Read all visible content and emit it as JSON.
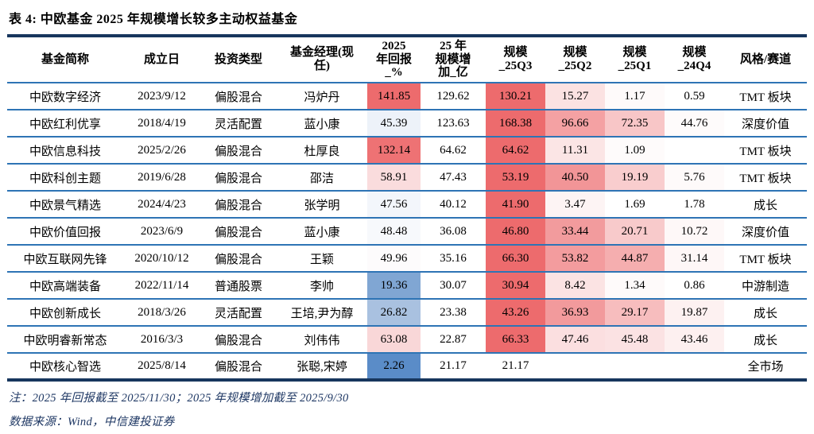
{
  "title": "表 4: 中欧基金 2025 年规模增长较多主动权益基金",
  "colors": {
    "accent_navy": "#17365D",
    "row_border_blue": "#2E74B5",
    "heat_red_max": "#ED6B6D",
    "heat_blue_min": "#5A8CC8",
    "note_text": "#1F3864"
  },
  "table": {
    "columns": [
      "基金简称",
      "成立日",
      "投资类型",
      "基金经理(现\n任)",
      "2025\n年回报\n_%",
      "25 年\n规模增\n加_亿",
      "规模\n_25Q3",
      "规模\n_25Q2",
      "规模\n_25Q1",
      "规模\n_24Q4",
      "风格/赛道"
    ],
    "rows": [
      {
        "cells": [
          "中欧数字经济",
          "2023/9/12",
          "偏股混合",
          "冯炉丹",
          "141.85",
          "129.62",
          "130.21",
          "15.27",
          "1.17",
          "0.59",
          "TMT 板块"
        ],
        "fills": [
          null,
          null,
          null,
          null,
          "#ED6B6D",
          null,
          "#ED6B6D",
          "#FBE2E2",
          "#FEFAFA",
          null,
          null
        ]
      },
      {
        "cells": [
          "中欧红利优享",
          "2018/4/19",
          "灵活配置",
          "蓝小康",
          "45.39",
          "123.63",
          "168.38",
          "96.66",
          "72.35",
          "44.76",
          "深度价值"
        ],
        "fills": [
          null,
          null,
          null,
          null,
          "#EDF2F9",
          null,
          "#ED6B6D",
          "#F4A1A3",
          "#F8C6C7",
          "#FEFBFB",
          null
        ]
      },
      {
        "cells": [
          "中欧信息科技",
          "2025/2/26",
          "偏股混合",
          "杜厚良",
          "132.14",
          "64.62",
          "64.62",
          "11.31",
          "1.09",
          "",
          "TMT 板块"
        ],
        "fills": [
          null,
          null,
          null,
          null,
          "#EE7274",
          null,
          "#ED6B6D",
          "#FBE5E5",
          "#FEFBFB",
          null,
          null
        ]
      },
      {
        "cells": [
          "中欧科创主题",
          "2019/6/28",
          "偏股混合",
          "邵洁",
          "58.91",
          "47.43",
          "53.19",
          "40.50",
          "19.19",
          "5.76",
          "TMT 板块"
        ],
        "fills": [
          null,
          null,
          null,
          null,
          "#FADCDD",
          null,
          "#ED6B6D",
          "#F29597",
          "#F9CDCE",
          "#FEFAFA",
          null
        ]
      },
      {
        "cells": [
          "中欧景气精选",
          "2024/4/23",
          "偏股混合",
          "张学明",
          "47.56",
          "40.12",
          "41.90",
          "3.47",
          "1.69",
          "1.78",
          "成长"
        ],
        "fills": [
          null,
          null,
          null,
          null,
          "#F3F6FB",
          null,
          "#ED6B6D",
          "#FDF4F4",
          null,
          null,
          null
        ]
      },
      {
        "cells": [
          "中欧价值回报",
          "2023/6/9",
          "偏股混合",
          "蓝小康",
          "48.48",
          "36.08",
          "46.80",
          "33.44",
          "20.71",
          "10.72",
          "深度价值"
        ],
        "fills": [
          null,
          null,
          null,
          null,
          "#F7F9FC",
          null,
          "#ED6B6D",
          "#F29B9D",
          "#F8CACB",
          "#FEF8F8",
          null
        ]
      },
      {
        "cells": [
          "中欧互联网先锋",
          "2020/10/12",
          "偏股混合",
          "王颖",
          "49.96",
          "35.16",
          "66.30",
          "53.82",
          "44.87",
          "31.14",
          "TMT 板块"
        ],
        "fills": [
          null,
          null,
          null,
          null,
          "#FDFBFC",
          null,
          "#ED6B6D",
          "#F39C9E",
          "#F5AEAF",
          "#FEF7F7",
          null
        ]
      },
      {
        "cells": [
          "中欧高端装备",
          "2022/11/14",
          "普通股票",
          "李帅",
          "19.36",
          "30.07",
          "30.94",
          "8.42",
          "1.34",
          "0.86",
          "中游制造"
        ],
        "fills": [
          null,
          null,
          null,
          null,
          "#80A6D3",
          null,
          "#ED6B6D",
          "#FBE3E3",
          "#FEFAFA",
          null,
          null
        ]
      },
      {
        "cells": [
          "中欧创新成长",
          "2018/3/26",
          "灵活配置",
          "王培,尹为醇",
          "26.82",
          "23.38",
          "43.26",
          "36.93",
          "29.17",
          "19.87",
          "成长"
        ],
        "fills": [
          null,
          null,
          null,
          null,
          "#A9C1E0",
          null,
          "#ED6B6D",
          "#F29A9C",
          "#F7BDBE",
          "#FDF1F1",
          null
        ]
      },
      {
        "cells": [
          "中欧明睿新常态",
          "2016/3/3",
          "偏股混合",
          "刘伟伟",
          "63.08",
          "22.87",
          "66.33",
          "47.46",
          "45.48",
          "43.46",
          "成长"
        ],
        "fills": [
          null,
          null,
          null,
          null,
          "#F9D7D8",
          null,
          "#ED6B6D",
          "#FBDFE0",
          "#FBE2E3",
          "#FDF0F0",
          null
        ]
      },
      {
        "cells": [
          "中欧核心智选",
          "2025/8/14",
          "偏股混合",
          "张聪,宋婷",
          "2.26",
          "21.17",
          "21.17",
          "",
          "",
          "",
          "全市场"
        ],
        "fills": [
          null,
          null,
          null,
          null,
          "#5A8CC8",
          null,
          null,
          null,
          null,
          null,
          null
        ]
      }
    ]
  },
  "notes": {
    "note1": "注：2025 年回报截至 2025/11/30；2025 年规模增加截至 2025/9/30",
    "source": "数据来源：Wind，中信建投证券"
  }
}
